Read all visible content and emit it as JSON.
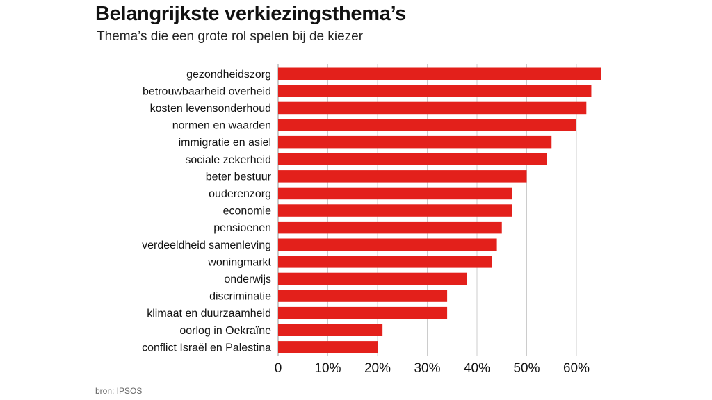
{
  "header": {
    "title": "Belangrijkste verkiezingsthema’s",
    "subtitle": "Thema’s die een grote rol spelen bij de kiezer"
  },
  "footer": {
    "source": "bron: IPSOS"
  },
  "colors": {
    "bar": "#e3201b",
    "grid": "#cccccc",
    "axis": "#999999"
  },
  "chart_data": {
    "type": "bar",
    "orientation": "horizontal",
    "title": "Belangrijkste verkiezingsthema’s",
    "subtitle": "Thema’s die een grote rol spelen bij de kiezer",
    "categories": [
      "gezondheidszorg",
      "betrouwbaarheid overheid",
      "kosten levensonderhoud",
      "normen en waarden",
      "immigratie en asiel",
      "sociale zekerheid",
      "beter bestuur",
      "ouderenzorg",
      "economie",
      "pensioenen",
      "verdeeldheid samenleving",
      "woningmarkt",
      "onderwijs",
      "discriminatie",
      "klimaat en duurzaamheid",
      "oorlog in Oekraïne",
      "conflict Israël en Palestina"
    ],
    "values": [
      65,
      63,
      62,
      60,
      55,
      54,
      50,
      47,
      47,
      45,
      44,
      43,
      38,
      34,
      34,
      21,
      20
    ],
    "xlim": [
      0,
      65
    ],
    "xticks": [
      0,
      10,
      20,
      30,
      40,
      50,
      60
    ],
    "xtick_labels": [
      "0",
      "10%",
      "20%",
      "30%",
      "40%",
      "50%",
      "60%"
    ],
    "grid": true,
    "legend": "none"
  }
}
